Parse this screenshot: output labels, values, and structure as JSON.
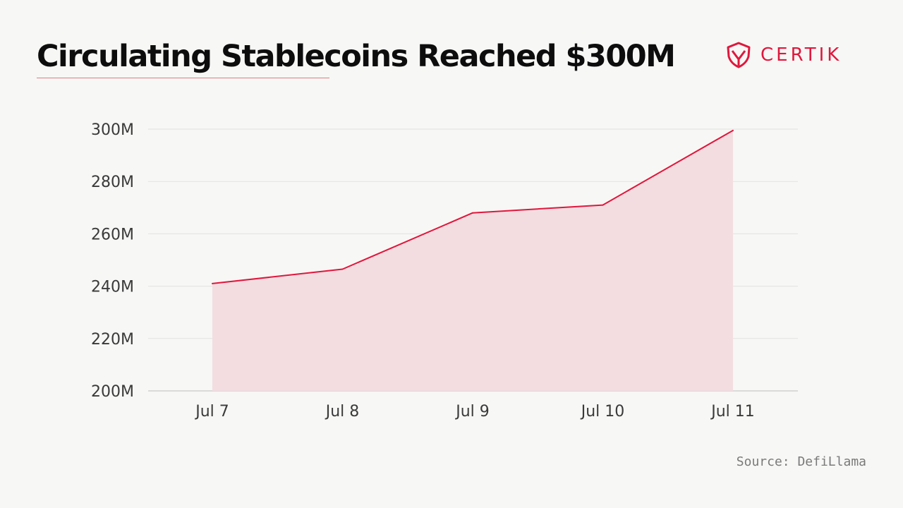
{
  "title": "Circulating Stablecoins Reached $300M",
  "brand": {
    "name": "CERTIK",
    "logo_icon": "certik-shield-icon",
    "color": "#e0173c"
  },
  "source": "Source: DefiLlama",
  "colors": {
    "line": "#e0173c",
    "area": "#f3dde1",
    "grid": "#e2e2e2",
    "background": "#f7f7f5"
  },
  "chart_data": {
    "type": "area",
    "categories": [
      "Jul 7",
      "Jul 8",
      "Jul 9",
      "Jul 10",
      "Jul 11"
    ],
    "series": [
      {
        "values": [
          241,
          246.5,
          268,
          271,
          299.5
        ]
      }
    ],
    "y_unit": "M",
    "ylim": [
      200,
      300
    ],
    "y_ticks": [
      200,
      220,
      240,
      260,
      280,
      300
    ],
    "y_tick_labels": [
      "200M",
      "220M",
      "240M",
      "260M",
      "280M",
      "300M"
    ],
    "grid": true,
    "legend": "none"
  }
}
